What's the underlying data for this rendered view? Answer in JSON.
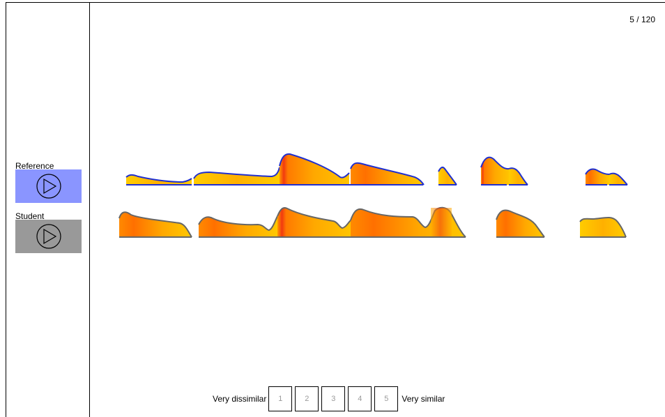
{
  "counter": "5 / 120",
  "reference": {
    "label": "Reference",
    "button_color": "#8a95ff",
    "icon": "play-icon"
  },
  "student": {
    "label": "Student",
    "button_color": "#999999",
    "icon": "play-icon"
  },
  "rating": {
    "left_label": "Very dissimilar",
    "right_label": "Very similar",
    "options": [
      "1",
      "2",
      "3",
      "4",
      "5"
    ]
  },
  "colors": {
    "contour_fill_low": "#ffd000",
    "contour_fill_high": "#f03010",
    "reference_outline": "#1f2fd0",
    "student_outline": "#666666"
  }
}
